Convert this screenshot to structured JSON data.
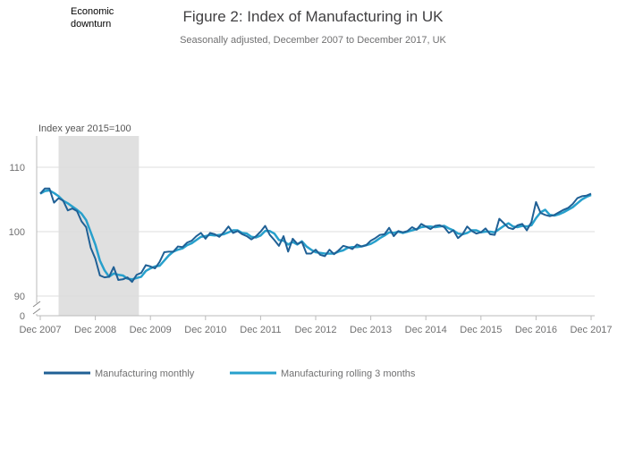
{
  "chart_data": {
    "type": "line",
    "title": "Figure 2: Index of Manufacturing in UK",
    "subtitle": "Seasonally adjusted, December 2007 to December 2017, UK",
    "unit_label": "Index year 2015=100",
    "annotation": {
      "line1": "Economic",
      "line2": "downturn"
    },
    "shaded_region": {
      "from": "2008-04",
      "to": "2009-09"
    },
    "xlim": [
      "2007-12",
      "2017-12"
    ],
    "ylim": [
      88,
      115
    ],
    "y_break": true,
    "y_ticks": [
      "0",
      "90",
      "100",
      "110"
    ],
    "x_ticks": [
      "Dec 2007",
      "Dec 2008",
      "Dec 2009",
      "Dec 2010",
      "Dec 2011",
      "Dec 2012",
      "Dec 2013",
      "Dec 2014",
      "Dec 2015",
      "Dec 2016",
      "Dec 2017"
    ],
    "grid": true,
    "legend_position": "bottom-left",
    "x_start": "2007-12",
    "series": [
      {
        "name": "Manufacturing monthly",
        "color": "#206095",
        "values": [
          105.9,
          106.7,
          106.7,
          104.5,
          105.2,
          104.8,
          103.3,
          103.6,
          103.2,
          101.6,
          100.7,
          97.5,
          95.8,
          93.2,
          92.9,
          93.0,
          94.5,
          92.5,
          92.6,
          92.9,
          92.2,
          93.3,
          93.6,
          94.8,
          94.6,
          94.3,
          95.3,
          96.8,
          96.9,
          96.9,
          97.7,
          97.6,
          98.3,
          98.6,
          99.3,
          99.8,
          98.9,
          99.8,
          99.6,
          99.2,
          99.9,
          100.8,
          99.8,
          100.1,
          99.6,
          99.3,
          98.8,
          99.3,
          100.0,
          100.9,
          99.5,
          98.7,
          97.8,
          99.3,
          96.9,
          98.9,
          98.1,
          98.4,
          96.6,
          96.6,
          97.2,
          96.4,
          96.2,
          97.2,
          96.5,
          97.1,
          97.8,
          97.6,
          97.3,
          98.0,
          97.7,
          97.9,
          98.6,
          99.0,
          99.5,
          99.6,
          100.6,
          99.3,
          100.1,
          99.9,
          100.1,
          100.7,
          100.3,
          101.2,
          100.8,
          100.4,
          100.9,
          101.0,
          100.7,
          99.8,
          100.2,
          99.0,
          99.6,
          100.8,
          100.1,
          99.7,
          99.9,
          100.5,
          99.6,
          99.5,
          102.0,
          101.3,
          100.6,
          100.4,
          101.0,
          101.2,
          100.2,
          101.5,
          104.6,
          102.9,
          102.6,
          102.4,
          102.6,
          103.0,
          103.4,
          103.7,
          104.3,
          105.2,
          105.5,
          105.6,
          105.9
        ]
      },
      {
        "name": "Manufacturing rolling 3 months",
        "color": "#27a0cc",
        "values": [
          105.9,
          106.3,
          106.4,
          106.0,
          105.5,
          104.8,
          104.4,
          103.9,
          103.4,
          102.8,
          101.8,
          99.9,
          98.0,
          95.5,
          94.0,
          93.0,
          93.5,
          93.3,
          93.2,
          92.7,
          92.6,
          92.8,
          93.0,
          93.9,
          94.3,
          94.6,
          94.7,
          95.5,
          96.3,
          96.9,
          97.2,
          97.4,
          97.9,
          98.2,
          98.7,
          99.2,
          99.3,
          99.5,
          99.4,
          99.5,
          99.6,
          99.9,
          100.2,
          100.2,
          99.8,
          99.7,
          99.2,
          99.1,
          99.4,
          100.1,
          100.1,
          99.7,
          98.7,
          98.6,
          98.0,
          98.4,
          98.0,
          98.5,
          97.7,
          97.2,
          96.8,
          96.7,
          96.6,
          96.6,
          96.6,
          96.9,
          97.1,
          97.5,
          97.6,
          97.6,
          97.7,
          97.9,
          98.1,
          98.5,
          99.0,
          99.4,
          99.9,
          99.8,
          100.0,
          99.8,
          100.0,
          100.2,
          100.4,
          100.7,
          100.8,
          100.8,
          100.7,
          100.8,
          100.9,
          100.5,
          100.2,
          99.7,
          99.6,
          99.8,
          100.2,
          100.2,
          99.9,
          100.0,
          100.0,
          99.9,
          100.4,
          100.9,
          101.3,
          100.8,
          100.7,
          100.9,
          100.8,
          101.0,
          102.1,
          103.0,
          103.4,
          102.6,
          102.5,
          102.7,
          103.0,
          103.4,
          103.8,
          104.4,
          105.0,
          105.4,
          105.7
        ]
      }
    ]
  }
}
